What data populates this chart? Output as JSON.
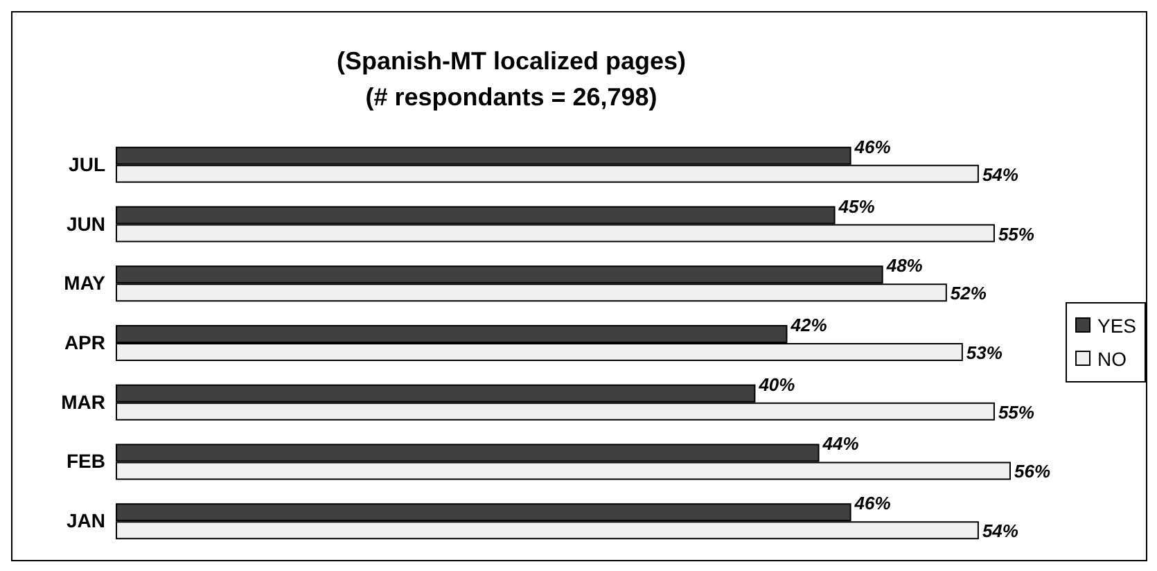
{
  "chart_data": {
    "type": "bar",
    "orientation": "horizontal",
    "title": "(Spanish-MT localized pages)",
    "subtitle": "(# respondants = 26,798)",
    "categories": [
      "JUL",
      "JUN",
      "MAY",
      "APR",
      "MAR",
      "FEB",
      "JAN"
    ],
    "series": [
      {
        "name": "YES",
        "color": "#404040",
        "values": [
          46,
          45,
          48,
          42,
          40,
          44,
          46
        ],
        "value_labels": [
          "46%",
          "45%",
          "48%",
          "42%",
          "40%",
          "44%",
          "46%"
        ]
      },
      {
        "name": "NO",
        "color": "#f0f0f0",
        "values": [
          54,
          55,
          52,
          53,
          55,
          56,
          54
        ],
        "value_labels": [
          "54%",
          "55%",
          "52%",
          "53%",
          "55%",
          "56%",
          "54%"
        ]
      }
    ],
    "legend": "right",
    "grid": false
  }
}
